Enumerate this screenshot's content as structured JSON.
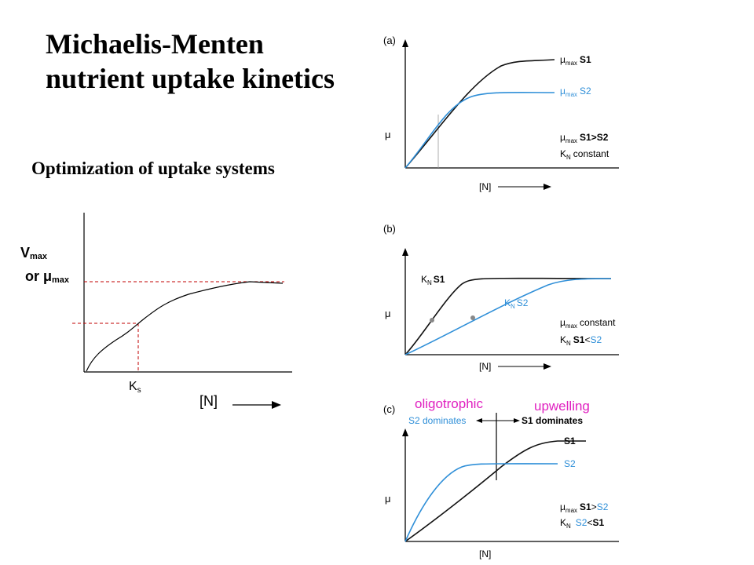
{
  "title": {
    "line1": "Michaelis-Menten",
    "line2": "nutrient uptake kinetics"
  },
  "subtitle": "Optimization of uptake systems",
  "left_plot": {
    "ylabel_v": "V",
    "ylabel_v_sub": "max",
    "ylabel_or": "or μ",
    "ylabel_or_sub": "max",
    "ks_label": "K",
    "ks_sub": "s",
    "xlabel": "[N]",
    "line_color": "#000000",
    "guide_color": "#c00000"
  },
  "panel_a": {
    "tag": "(a)",
    "ylabel": "μ",
    "xlabel": "[N]",
    "s1_mu": "μ",
    "s1_sub": "max",
    "s1_name": "S1",
    "s2_mu": "μ",
    "s2_sub": "max",
    "s2_name": "S2",
    "note1_mu": "μ",
    "note1_sub": "max",
    "note1_text": "S1>S2",
    "note2_k": "K",
    "note2_sub": "N",
    "note2_text": "constant",
    "s1_color": "#111111",
    "s2_color": "#2f8fd8"
  },
  "panel_b": {
    "tag": "(b)",
    "ylabel": "μ",
    "xlabel": "[N]",
    "s1_k": "K",
    "s1_sub": "N",
    "s1_name": "S1",
    "s2_k": "K",
    "s2_sub": "N",
    "s2_name": "S2",
    "note1_mu": "μ",
    "note1_sub": "max",
    "note1_text": "constant",
    "note2_k": "K",
    "note2_sub": "N",
    "note2_s1": "S1",
    "note2_lt": "<",
    "note2_s2": "S2"
  },
  "panel_c": {
    "tag": "(c)",
    "ylabel": "μ",
    "xlabel": "[N]",
    "left_label": "S2 dominates",
    "right_label": "S1 dominates",
    "s1_name": "S1",
    "s2_name": "S2",
    "note1_mu": "μ",
    "note1_sub": "max",
    "note1_s1": "S1",
    "note1_gt": ">",
    "note1_s2": "S2",
    "note2_k": "K",
    "note2_sub": "N",
    "note2_s2": "S2",
    "note2_lt": "<",
    "note2_s1": "S1",
    "oligotrophic": "oligotrophic",
    "upwelling": "upwelling",
    "pink_color": "#e020c0"
  }
}
